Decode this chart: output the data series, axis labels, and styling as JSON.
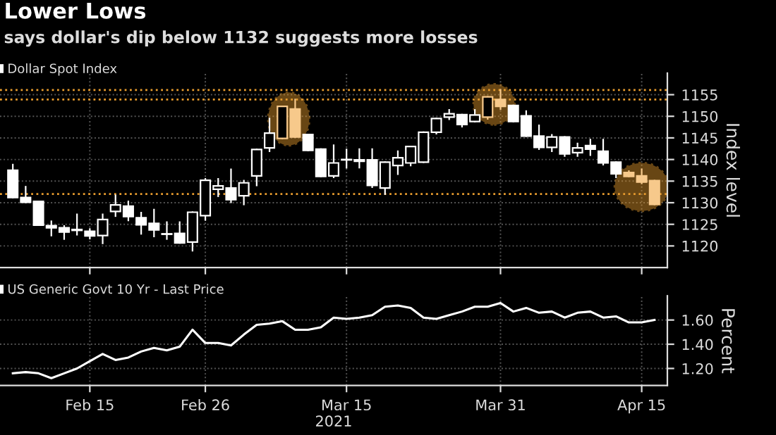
{
  "chart_data": [
    {
      "type": "candlestick",
      "title": "Lower Lows",
      "subtitle": "says dollar's dip below 1132 suggests more losses",
      "ylabel": "Index level",
      "categories": [
        null,
        null,
        null,
        null,
        null,
        null,
        null,
        null,
        null,
        null,
        null,
        null,
        null,
        null,
        null,
        null,
        null,
        null,
        null,
        null,
        null,
        null,
        null,
        null,
        null,
        null,
        null,
        null,
        null,
        null,
        null,
        null,
        null,
        null,
        null,
        null,
        null,
        null,
        null,
        null,
        null,
        null,
        null,
        null,
        null,
        null,
        null,
        null,
        null,
        null,
        null
      ],
      "series": [
        {
          "name": "Dollar Spot Index",
          "color": "#ffffff",
          "colors": [
            "#ffffff",
            "#ffffff",
            "#ffffff",
            "#ffffff",
            "#ffffff",
            "#ffffff",
            "#ffffff",
            "#ffffff",
            "#ffffff",
            "#ffffff",
            "#ffffff",
            "#ffffff",
            "#ffffff",
            "#ffffff",
            "#ffffff",
            "#ffffff",
            "#ffffff",
            "#ffffff",
            "#ffffff",
            "#ffffff",
            "#ffffff",
            "#f7c98b",
            "#f7c98b",
            "#ffffff",
            "#ffffff",
            "#ffffff",
            "#ffffff",
            "#ffffff",
            "#ffffff",
            "#ffffff",
            "#ffffff",
            "#ffffff",
            "#ffffff",
            "#ffffff",
            "#ffffff",
            "#ffffff",
            "#ffffff",
            "#f7c98b",
            "#f7c98b",
            "#ffffff",
            "#ffffff",
            "#ffffff",
            "#ffffff",
            "#ffffff",
            "#ffffff",
            "#ffffff",
            "#ffffff",
            "#ffffff",
            "#f7c98b",
            "#f7c98b",
            "#f7c98b"
          ],
          "ohlc": [
            [
              1137.5,
              1138.8,
              1131.2,
              1131.2
            ],
            [
              1131.2,
              1133.7,
              1130.1,
              1130.1
            ],
            [
              1130.3,
              1130.3,
              1124.8,
              1124.8
            ],
            [
              1124.7,
              1125.7,
              1122.4,
              1124.2
            ],
            [
              1124.2,
              1124.6,
              1121.6,
              1123.2
            ],
            [
              1123.8,
              1127.3,
              1122.6,
              1123.6
            ],
            [
              1123.4,
              1123.9,
              1121.7,
              1122.3
            ],
            [
              1122.4,
              1127.3,
              1120.6,
              1126.1
            ],
            [
              1128.0,
              1131.7,
              1126.9,
              1129.5
            ],
            [
              1129.2,
              1130.3,
              1125.9,
              1126.8
            ],
            [
              1126.5,
              1127.7,
              1122.8,
              1124.9
            ],
            [
              1125.2,
              1128.4,
              1122.2,
              1123.7
            ],
            [
              1122.8,
              1125.5,
              1121.6,
              1122.7
            ],
            [
              1122.9,
              1125.5,
              1120.7,
              1120.7
            ],
            [
              1120.9,
              1127.8,
              1118.9,
              1127.8
            ],
            [
              1127.0,
              1135.5,
              1126.0,
              1135.2
            ],
            [
              1133.1,
              1135.5,
              1131.5,
              1133.9
            ],
            [
              1133.4,
              1137.7,
              1130.1,
              1130.7
            ],
            [
              1131.6,
              1135.1,
              1129.6,
              1134.6
            ],
            [
              1136.2,
              1142.3,
              1134.0,
              1142.3
            ],
            [
              1142.7,
              1149.5,
              1141.9,
              1146.1
            ],
            [
              1144.9,
              1152.3,
              1144.9,
              1152.3
            ],
            [
              1151.7,
              1153.9,
              1145.2,
              1145.2
            ],
            [
              1145.8,
              1145.8,
              1142.1,
              1142.1
            ],
            [
              1142.4,
              1142.4,
              1136.1,
              1136.1
            ],
            [
              1136.2,
              1143.3,
              1135.9,
              1139.2
            ],
            [
              1139.9,
              1142.3,
              1138.1,
              1140.0
            ],
            [
              1139.6,
              1142.4,
              1138.1,
              1139.9
            ],
            [
              1139.9,
              1142.4,
              1133.6,
              1134.0
            ],
            [
              1133.4,
              1139.4,
              1132.0,
              1139.4
            ],
            [
              1138.6,
              1141.9,
              1136.6,
              1140.4
            ],
            [
              1139.2,
              1143.0,
              1138.6,
              1143.0
            ],
            [
              1139.4,
              1146.3,
              1139.4,
              1146.3
            ],
            [
              1146.3,
              1149.5,
              1146.0,
              1149.5
            ],
            [
              1149.8,
              1151.5,
              1149.3,
              1150.6
            ],
            [
              1150.4,
              1150.4,
              1147.6,
              1148.1
            ],
            [
              1148.8,
              1151.5,
              1148.8,
              1150.3
            ],
            [
              1149.8,
              1154.5,
              1149.4,
              1154.5
            ],
            [
              1153.9,
              1156.1,
              1151.7,
              1152.3
            ],
            [
              1152.5,
              1152.5,
              1148.8,
              1148.8
            ],
            [
              1150.1,
              1151.2,
              1145.4,
              1145.4
            ],
            [
              1145.4,
              1147.9,
              1142.4,
              1142.8
            ],
            [
              1142.8,
              1145.7,
              1141.9,
              1145.2
            ],
            [
              1145.2,
              1145.2,
              1140.8,
              1141.3
            ],
            [
              1141.6,
              1143.7,
              1140.8,
              1142.7
            ],
            [
              1143.2,
              1144.6,
              1141.0,
              1142.4
            ],
            [
              1141.9,
              1144.6,
              1138.8,
              1139.2
            ],
            [
              1139.4,
              1139.4,
              1135.9,
              1136.7
            ],
            [
              1137.0,
              1137.3,
              1136.1,
              1136.1
            ],
            [
              1136.2,
              1137.7,
              1134.5,
              1134.8
            ],
            [
              1135.1,
              1135.1,
              1129.6,
              1129.6
            ]
          ]
        }
      ],
      "ylim": [
        1115,
        1160
      ],
      "yticks": [
        1120,
        1125,
        1130,
        1135,
        1140,
        1145,
        1150,
        1155
      ],
      "ref_lines": [
        {
          "axis": "y",
          "value": 1156.1,
          "color": "#e69b2e",
          "line_style": "dotted"
        },
        {
          "axis": "y",
          "value": 1153.9,
          "color": "#e69b2e",
          "line_style": "dotted"
        },
        {
          "axis": "y",
          "value": 1132.0,
          "color": "#e69b2e",
          "line_style": "dotted"
        }
      ],
      "grid": true,
      "legend": "top left",
      "tick_labels": "y"
    },
    {
      "type": "line",
      "ylabel": "Percent",
      "xlabel": "2021",
      "categories": [
        null,
        null,
        null,
        null,
        null,
        null,
        "Feb 15",
        null,
        null,
        null,
        null,
        null,
        null,
        null,
        null,
        "Feb 26",
        null,
        null,
        null,
        null,
        null,
        null,
        null,
        null,
        null,
        null,
        "Mar 15",
        null,
        null,
        null,
        null,
        null,
        null,
        null,
        null,
        null,
        null,
        null,
        "Mar 31",
        null,
        null,
        null,
        null,
        null,
        null,
        null,
        null,
        null,
        null,
        "Apr 15",
        null
      ],
      "series": [
        {
          "name": "US Generic Govt 10 Yr - Last Price",
          "color": "#ffffff",
          "values": [
            1.16,
            1.17,
            1.16,
            1.12,
            1.16,
            1.2,
            1.26,
            1.32,
            1.27,
            1.29,
            1.34,
            1.37,
            1.35,
            1.38,
            1.52,
            1.41,
            1.41,
            1.39,
            1.48,
            1.56,
            1.57,
            1.59,
            1.52,
            1.52,
            1.54,
            1.62,
            1.61,
            1.62,
            1.64,
            1.71,
            1.72,
            1.7,
            1.62,
            1.61,
            1.64,
            1.67,
            1.71,
            1.71,
            1.74,
            1.67,
            1.7,
            1.66,
            1.67,
            1.62,
            1.66,
            1.67,
            1.62,
            1.63,
            1.58,
            1.58,
            1.6
          ]
        }
      ],
      "ylim": [
        1.06,
        1.8
      ],
      "yticks": [
        {
          "value": 1.2,
          "label": "1.20"
        },
        {
          "value": 1.4,
          "label": "1.40"
        },
        {
          "value": 1.6,
          "label": "1.60"
        }
      ],
      "grid": true,
      "legend": "top left",
      "marker": "none",
      "line_style": "solid"
    }
  ]
}
